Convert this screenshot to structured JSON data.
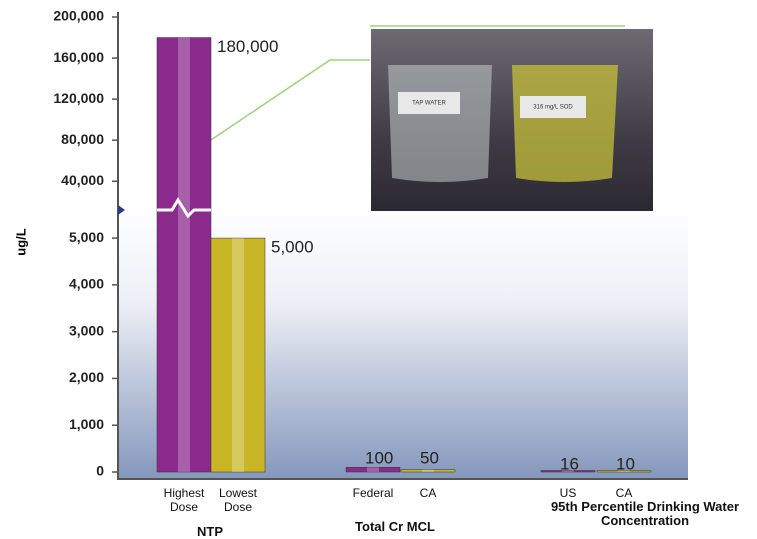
{
  "chart_data": {
    "type": "bar",
    "y_label": "ug/L",
    "categories": [
      "Highest Dose",
      "Lowest Dose",
      "Federal",
      "CA",
      "US",
      "CA"
    ],
    "values": [
      180000,
      5000,
      100,
      50,
      16,
      10
    ],
    "value_labels": [
      "180,000",
      "5,000",
      "100",
      "50",
      "16",
      "10"
    ],
    "colors": [
      "#8a2a8c",
      "#c9b626",
      "#8a2a8c",
      "#c9b626",
      "#8a2a8c",
      "#c9b626"
    ],
    "groups": [
      "NTP",
      "Total Cr MCL",
      "95th Percentile Drinking Water Concentration"
    ],
    "axis_segments": [
      {
        "ylim": [
          0,
          5600
        ],
        "yticks": [
          0,
          {
            "value": 1000,
            "label": "1,000"
          },
          {
            "value": 2000,
            "label": "2,000"
          },
          {
            "value": 3000,
            "label": "3,000"
          },
          {
            "value": 4000,
            "label": "4,000"
          },
          {
            "value": 5000,
            "label": "5,000"
          }
        ]
      },
      {
        "ylim": [
          12000,
          200000
        ],
        "yticks": [
          {
            "value": 40000,
            "label": "40,000"
          },
          {
            "value": 80000,
            "label": "80,000"
          },
          {
            "value": 120000,
            "label": "120,000"
          },
          {
            "value": 160000,
            "label": "160,000"
          },
          {
            "value": 200000,
            "label": "200,000"
          }
        ]
      }
    ],
    "inset_labels": [
      "TAP WATER",
      "316 mg/L SOD"
    ]
  }
}
